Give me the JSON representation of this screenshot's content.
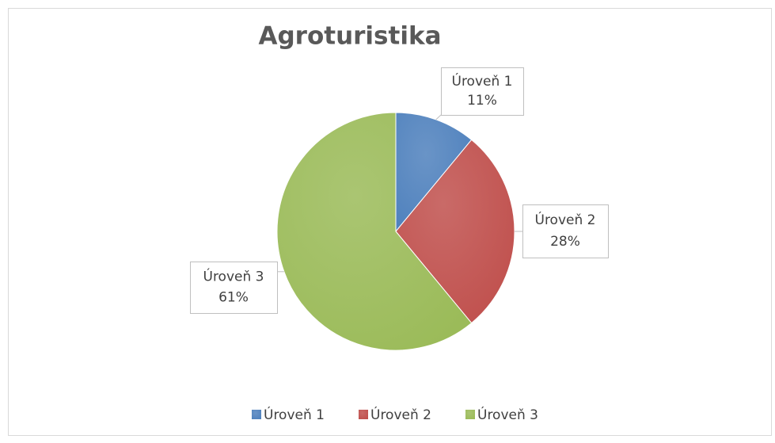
{
  "chart_data": {
    "type": "pie",
    "title": "Agroturistika",
    "categories": [
      "Úroveň 1",
      "Úroveň 2",
      "Úroveň 3"
    ],
    "values": [
      11,
      28,
      61
    ],
    "value_labels": [
      "11%",
      "28%",
      "61%"
    ],
    "colors": [
      "#4f81bd",
      "#c0504d",
      "#9bbb59"
    ],
    "legend": "bottom"
  }
}
